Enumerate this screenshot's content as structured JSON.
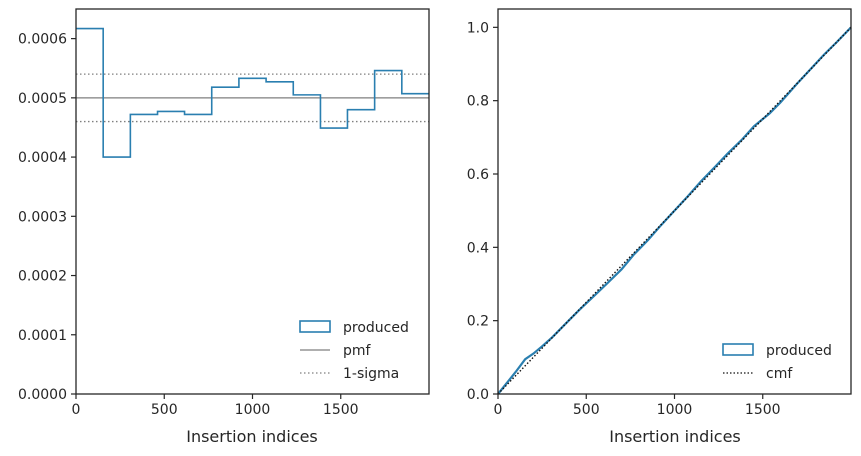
{
  "chart_data": [
    {
      "type": "step",
      "xlabel": "Insertion indices",
      "ylabel": "",
      "xlim": [
        0,
        2000
      ],
      "ylim": [
        0,
        0.00065
      ],
      "xticks": [
        "0",
        "500",
        "1000",
        "1500"
      ],
      "yticks": [
        "0.0000",
        "0.0001",
        "0.0002",
        "0.0003",
        "0.0004",
        "0.0005",
        "0.0006"
      ],
      "bin_edges": [
        0,
        154,
        308,
        462,
        615,
        769,
        923,
        1077,
        1231,
        1385,
        1538,
        1692,
        1846,
        2000
      ],
      "series": [
        {
          "name": "produced",
          "style": "step",
          "color": "#2a7fb0",
          "values": [
            0.000617,
            0.0004,
            0.000472,
            0.000477,
            0.000472,
            0.000518,
            0.000533,
            0.000527,
            0.000505,
            0.000449,
            0.00048,
            0.000546,
            0.000507
          ]
        },
        {
          "name": "pmf",
          "style": "solid",
          "color": "#7f7f7f",
          "value": 0.0005
        },
        {
          "name": "1-sigma",
          "style": "dotted",
          "color": "#7f7f7f",
          "values": [
            0.00046,
            0.00054
          ]
        }
      ],
      "legend": "lower-right"
    },
    {
      "type": "line",
      "xlabel": "Insertion indices",
      "ylabel": "",
      "xlim": [
        0,
        2000
      ],
      "ylim": [
        0,
        1.05
      ],
      "xticks": [
        "0",
        "500",
        "1000",
        "1500"
      ],
      "yticks": [
        "0.0",
        "0.2",
        "0.4",
        "0.6",
        "0.8",
        "1.0"
      ],
      "series": [
        {
          "name": "produced",
          "style": "solid",
          "color": "#2a7fb0",
          "x": [
            0,
            50,
            100,
            154,
            200,
            250,
            308,
            400,
            462,
            550,
            615,
            700,
            769,
            850,
            923,
            1000,
            1077,
            1150,
            1231,
            1300,
            1385,
            1450,
            1538,
            1600,
            1692,
            1750,
            1846,
            1920,
            2000
          ],
          "y": [
            0,
            0.03,
            0.06,
            0.095,
            0.11,
            0.13,
            0.155,
            0.2,
            0.23,
            0.27,
            0.3,
            0.34,
            0.38,
            0.42,
            0.46,
            0.5,
            0.54,
            0.58,
            0.62,
            0.655,
            0.695,
            0.73,
            0.765,
            0.795,
            0.845,
            0.875,
            0.925,
            0.96,
            1.0
          ]
        },
        {
          "name": "cmf",
          "style": "dotted",
          "color": "#111111",
          "x": [
            0,
            2000
          ],
          "y": [
            0,
            1.0
          ]
        }
      ],
      "legend": "lower-right"
    }
  ]
}
